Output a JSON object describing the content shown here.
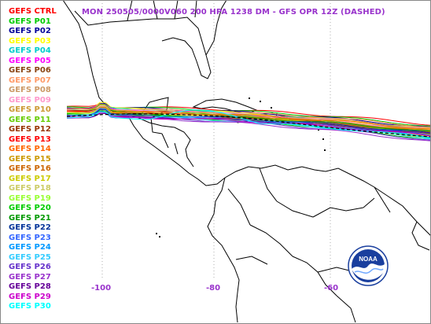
{
  "title": "MON 250505/0000V060  200 HPA 1238 DM - GFS OPR 12Z (DASHED)",
  "members": [
    {
      "label": "GEFS CTRL",
      "color": "#ff0000"
    },
    {
      "label": "GEFS P01",
      "color": "#00cc00"
    },
    {
      "label": "GEFS P02",
      "color": "#000099"
    },
    {
      "label": "GEFS P03",
      "color": "#ffff00"
    },
    {
      "label": "GEFS P04",
      "color": "#00cccc"
    },
    {
      "label": "GEFS P05",
      "color": "#ff00ff"
    },
    {
      "label": "GEFS P06",
      "color": "#8b4513"
    },
    {
      "label": "GEFS P07",
      "color": "#ff9966"
    },
    {
      "label": "GEFS P08",
      "color": "#cc9966"
    },
    {
      "label": "GEFS P09",
      "color": "#ff99cc"
    },
    {
      "label": "GEFS P10",
      "color": "#cc9933"
    },
    {
      "label": "GEFS P11",
      "color": "#66cc00"
    },
    {
      "label": "GEFS P12",
      "color": "#993300"
    },
    {
      "label": "GEFS P13",
      "color": "#ff0000"
    },
    {
      "label": "GEFS P14",
      "color": "#ff6600"
    },
    {
      "label": "GEFS P15",
      "color": "#cc9900"
    },
    {
      "label": "GEFS P16",
      "color": "#cc6600"
    },
    {
      "label": "GEFS P17",
      "color": "#cccc00"
    },
    {
      "label": "GEFS P18",
      "color": "#cccc66"
    },
    {
      "label": "GEFS P19",
      "color": "#99ff33"
    },
    {
      "label": "GEFS P20",
      "color": "#00cc00"
    },
    {
      "label": "GEFS P21",
      "color": "#009900"
    },
    {
      "label": "GEFS P22",
      "color": "#003399"
    },
    {
      "label": "GEFS P23",
      "color": "#3366ff"
    },
    {
      "label": "GEFS P24",
      "color": "#0099ff"
    },
    {
      "label": "GEFS P25",
      "color": "#33ccff"
    },
    {
      "label": "GEFS P26",
      "color": "#6633cc"
    },
    {
      "label": "GEFS P27",
      "color": "#9933cc"
    },
    {
      "label": "GEFS P28",
      "color": "#660099"
    },
    {
      "label": "GEFS P29",
      "color": "#cc00cc"
    },
    {
      "label": "GEFS P30",
      "color": "#00ffff"
    }
  ],
  "longitude_labels": [
    "-100",
    "-80",
    "-60"
  ],
  "logo_text": "NOAA",
  "colors": {
    "title": "#9933cc",
    "coast": "#000000",
    "gridlines": "#999999",
    "opr_dashed": "#000000"
  }
}
